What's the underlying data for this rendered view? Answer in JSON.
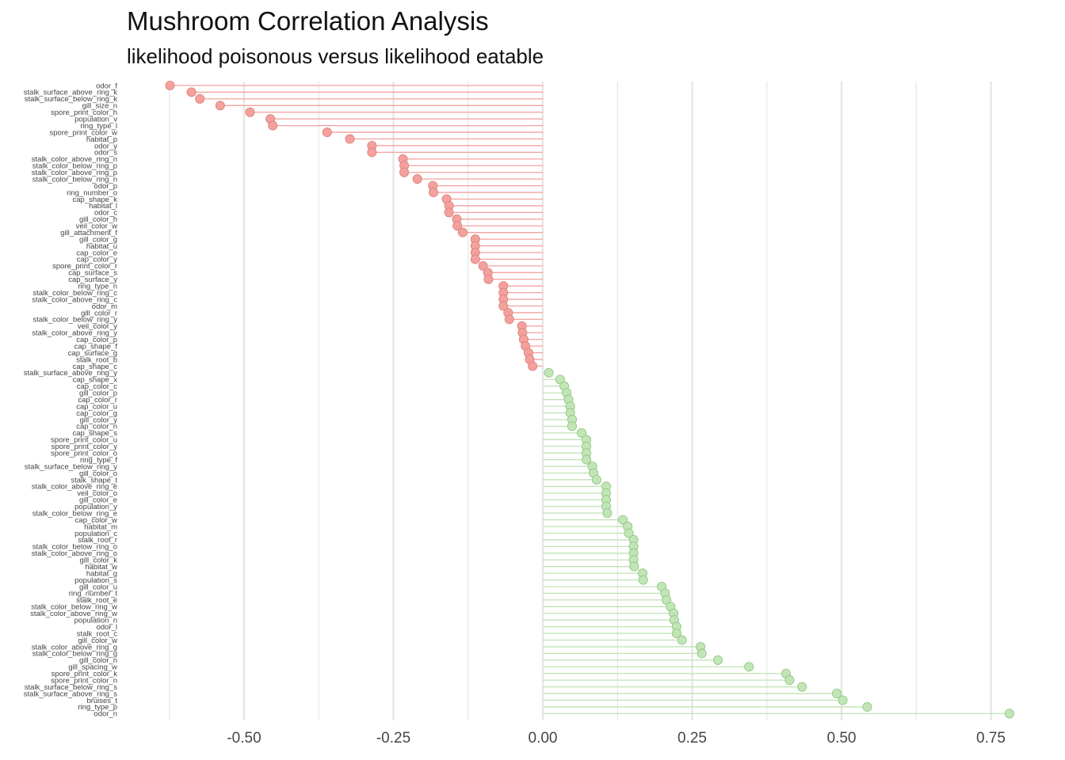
{
  "chart_data": {
    "type": "lollipop",
    "title": "Mushroom Correlation Analysis",
    "subtitle": "likelihood poisonous versus likelihood eatable",
    "xlabel": "",
    "ylabel": "",
    "xlim": [
      -0.7,
      0.79
    ],
    "x_ticks": [
      -0.5,
      -0.25,
      0.0,
      0.25,
      0.5,
      0.75
    ],
    "x_tick_labels": [
      "-0.50",
      "-0.25",
      "0.00",
      "0.25",
      "0.50",
      "0.75"
    ],
    "grid": true,
    "colors": {
      "negative": "#f4a09c",
      "positive": "#bfe3b4",
      "grid": "#e6e6e6"
    },
    "categories": [
      "odor_f",
      "stalk_surface_above_ring_k",
      "stalk_surface_below_ring_k",
      "gill_size_n",
      "spore_print_color_h",
      "population_v",
      "ring_type_l",
      "spore_print_color_w",
      "habitat_p",
      "odor_y",
      "odor_s",
      "stalk_color_above_ring_n",
      "stalk_color_below_ring_p",
      "stalk_color_above_ring_p",
      "stalk_color_below_ring_n",
      "odor_p",
      "ring_number_o",
      "cap_shape_k",
      "habitat_l",
      "odor_c",
      "gill_color_h",
      "veil_color_w",
      "gill_attachment_f",
      "gill_color_g",
      "habitat_u",
      "cap_color_e",
      "cap_color_y",
      "spore_print_color_r",
      "cap_surface_s",
      "cap_surface_y",
      "ring_type_n",
      "stalk_color_below_ring_c",
      "stalk_color_above_ring_c",
      "odor_m",
      "gill_color_r",
      "stalk_color_below_ring_y",
      "veil_color_y",
      "stalk_color_above_ring_y",
      "cap_color_p",
      "cap_shape_f",
      "cap_surface_g",
      "stalk_root_b",
      "cap_shape_c",
      "stalk_surface_above_ring_y",
      "cap_shape_x",
      "cap_color_c",
      "gill_color_p",
      "cap_color_r",
      "cap_color_u",
      "cap_color_g",
      "gill_color_y",
      "cap_color_n",
      "cap_shape_s",
      "spore_print_color_u",
      "spore_print_color_y",
      "spore_print_color_o",
      "ring_type_f",
      "stalk_surface_below_ring_y",
      "gill_color_o",
      "stalk_shape_t",
      "stalk_color_above_ring_e",
      "veil_color_o",
      "gill_color_e",
      "population_y",
      "stalk_color_below_ring_e",
      "cap_color_w",
      "habitat_m",
      "population_c",
      "stalk_root_r",
      "stalk_color_below_ring_o",
      "stalk_color_above_ring_o",
      "gill_color_k",
      "habitat_w",
      "habitat_g",
      "population_s",
      "gill_color_u",
      "ring_number_t",
      "stalk_root_e",
      "stalk_color_below_ring_w",
      "stalk_color_above_ring_w",
      "population_n",
      "odor_l",
      "stalk_root_c",
      "gill_color_w",
      "stalk_color_above_ring_g",
      "stalk_color_below_ring_g",
      "gill_color_n",
      "gill_spacing_w",
      "spore_print_color_k",
      "spore_print_color_n",
      "stalk_surface_below_ring_s",
      "stalk_surface_above_ring_s",
      "bruises_t",
      "ring_type_p",
      "odor_n"
    ],
    "values": [
      -0.624,
      -0.588,
      -0.574,
      -0.54,
      -0.49,
      -0.456,
      -0.452,
      -0.361,
      -0.323,
      -0.286,
      -0.286,
      -0.234,
      -0.232,
      -0.232,
      -0.21,
      -0.184,
      -0.183,
      -0.161,
      -0.157,
      -0.157,
      -0.144,
      -0.143,
      -0.134,
      -0.113,
      -0.113,
      -0.113,
      -0.113,
      -0.1,
      -0.092,
      -0.091,
      -0.066,
      -0.066,
      -0.066,
      -0.066,
      -0.058,
      -0.056,
      -0.035,
      -0.034,
      -0.032,
      -0.029,
      -0.024,
      -0.022,
      -0.017,
      0.01,
      0.029,
      0.036,
      0.04,
      0.043,
      0.046,
      0.046,
      0.049,
      0.049,
      0.065,
      0.073,
      0.073,
      0.073,
      0.073,
      0.083,
      0.085,
      0.09,
      0.106,
      0.106,
      0.106,
      0.106,
      0.108,
      0.134,
      0.142,
      0.144,
      0.152,
      0.152,
      0.152,
      0.152,
      0.153,
      0.167,
      0.168,
      0.199,
      0.205,
      0.207,
      0.214,
      0.219,
      0.22,
      0.224,
      0.224,
      0.233,
      0.264,
      0.266,
      0.293,
      0.345,
      0.407,
      0.413,
      0.434,
      0.492,
      0.502,
      0.543,
      0.781
    ]
  }
}
